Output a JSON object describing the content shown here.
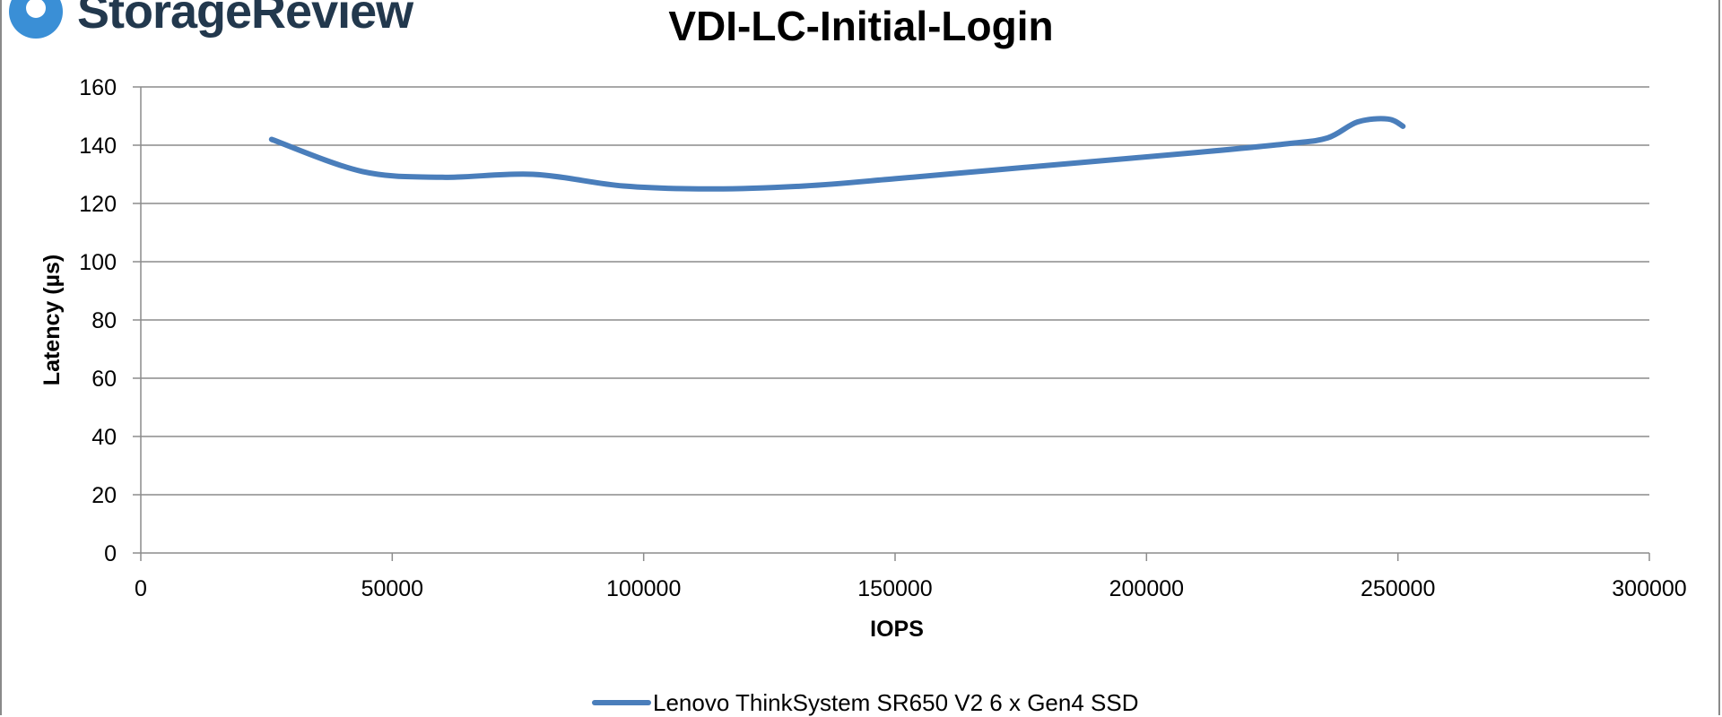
{
  "brand": {
    "name": "StorageReview"
  },
  "colors": {
    "series": "#4a7ebb",
    "grid": "#8c8c8c",
    "brand_blue": "#3a8fd6",
    "brand_text": "#22384d"
  },
  "chart_data": {
    "type": "line",
    "title": "VDI-LC-Initial-Login",
    "xlabel": "IOPS",
    "ylabel": "Latency (µs)",
    "xlim": [
      0,
      300000
    ],
    "ylim": [
      0,
      160
    ],
    "xticks": [
      0,
      50000,
      100000,
      150000,
      200000,
      250000,
      300000
    ],
    "yticks": [
      0,
      20,
      40,
      60,
      80,
      100,
      120,
      140,
      160
    ],
    "grid": true,
    "legend_position": "bottom-center",
    "series": [
      {
        "name": "Lenovo ThinkSystem SR650 V2 6 x Gen4 SSD",
        "points": [
          [
            26000,
            142
          ],
          [
            44000,
            131
          ],
          [
            60000,
            129
          ],
          [
            78000,
            130
          ],
          [
            96000,
            126
          ],
          [
            114000,
            125
          ],
          [
            132000,
            126
          ],
          [
            150000,
            128.5
          ],
          [
            170000,
            131.5
          ],
          [
            190000,
            134.5
          ],
          [
            210000,
            137.5
          ],
          [
            228000,
            140.5
          ],
          [
            236000,
            142.5
          ],
          [
            242000,
            148
          ],
          [
            248000,
            149
          ],
          [
            251000,
            146.5
          ]
        ]
      }
    ]
  }
}
